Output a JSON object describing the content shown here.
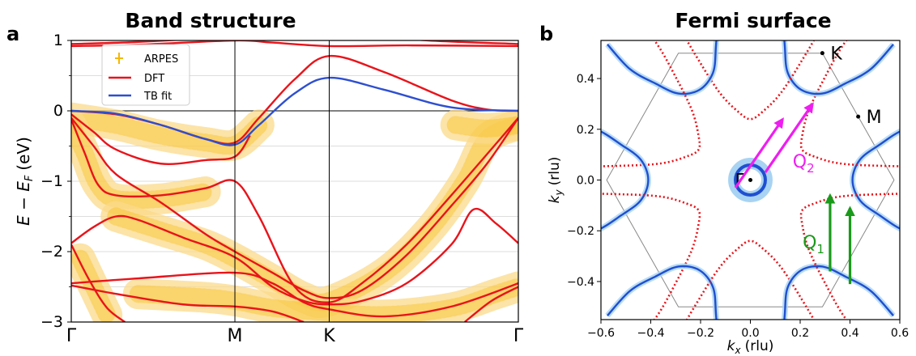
{
  "panels": {
    "a": {
      "letter": "a",
      "title": "Band structure"
    },
    "b": {
      "letter": "b",
      "title": "Fermi surface"
    }
  },
  "colors": {
    "dft": "#e8141b",
    "tb": "#2e4fcf",
    "arpes": "#f5b700",
    "arpes_glow": "#fbd98a",
    "magenta": "#ee1ef0",
    "green": "#1a9a1a",
    "fs_blue": "#1f4fd0",
    "fs_light": "#a8d3f2",
    "hexagon": "#888888"
  },
  "chart_data": [
    {
      "type": "line",
      "title": "Band structure",
      "ylabel": "E − E_F (eV)",
      "ylabel_parts": {
        "main": "E − E",
        "sub": "F",
        "unit": "(eV)"
      },
      "ylim": [
        -3,
        1
      ],
      "yticks": [
        1,
        0,
        -1,
        -2,
        -3
      ],
      "ytick_labels": [
        "1",
        "0",
        "−1",
        "−2",
        "−3"
      ],
      "xlim": [
        0,
        1
      ],
      "kpoints": [
        {
          "label": "Γ",
          "x": 0.0
        },
        {
          "label": "M",
          "x": 0.366
        },
        {
          "label": "K",
          "x": 0.577
        },
        {
          "label": "Γ",
          "x": 1.0
        }
      ],
      "legend": {
        "placement": "upper-left",
        "entries": [
          {
            "label": "ARPES",
            "kind": "marker",
            "color": "#f5b700"
          },
          {
            "label": "DFT",
            "kind": "line",
            "color": "#e8141b"
          },
          {
            "label": "TB fit",
            "kind": "line",
            "color": "#2e4fcf"
          }
        ]
      },
      "series": [
        {
          "kind": "dft",
          "points": [
            [
              0,
              0.92
            ],
            [
              0.15,
              0.94
            ],
            [
              0.366,
              1.0
            ],
            [
              0.45,
              0.97
            ],
            [
              0.577,
              0.92
            ],
            [
              0.75,
              0.93
            ],
            [
              1.0,
              0.92
            ]
          ]
        },
        {
          "kind": "dft",
          "points": [
            [
              0,
              0.95
            ],
            [
              0.15,
              0.98
            ],
            [
              0.366,
              1.05
            ],
            [
              0.577,
              1.1
            ],
            [
              0.8,
              1.0
            ],
            [
              1.0,
              0.95
            ]
          ]
        },
        {
          "kind": "dft",
          "points": [
            [
              0,
              0.0
            ],
            [
              0.1,
              -0.05
            ],
            [
              0.2,
              -0.2
            ],
            [
              0.3,
              -0.4
            ],
            [
              0.366,
              -0.45
            ],
            [
              0.42,
              -0.1
            ],
            [
              0.5,
              0.45
            ],
            [
              0.577,
              0.78
            ],
            [
              0.7,
              0.55
            ],
            [
              0.85,
              0.15
            ],
            [
              0.93,
              0.02
            ],
            [
              1.0,
              0.0
            ]
          ]
        },
        {
          "kind": "dft",
          "points": [
            [
              0,
              -0.05
            ],
            [
              0.05,
              -0.3
            ],
            [
              0.1,
              -0.55
            ],
            [
              0.2,
              -0.75
            ],
            [
              0.3,
              -0.7
            ],
            [
              0.366,
              -0.65
            ],
            [
              0.4,
              -0.35
            ]
          ]
        },
        {
          "kind": "dft",
          "points": [
            [
              0,
              -0.1
            ],
            [
              0.05,
              -0.5
            ],
            [
              0.1,
              -0.9
            ],
            [
              0.2,
              -1.3
            ],
            [
              0.3,
              -1.75
            ],
            [
              0.366,
              -2.0
            ],
            [
              0.45,
              -2.3
            ],
            [
              0.52,
              -2.55
            ],
            [
              0.577,
              -2.66
            ],
            [
              0.65,
              -2.55
            ],
            [
              0.75,
              -2.05
            ],
            [
              0.85,
              -1.35
            ],
            [
              0.93,
              -0.75
            ],
            [
              1.0,
              -0.1
            ]
          ]
        },
        {
          "kind": "dft",
          "points": [
            [
              0,
              -0.12
            ],
            [
              0.03,
              -0.6
            ],
            [
              0.06,
              -1.05
            ],
            [
              0.1,
              -1.2
            ],
            [
              0.2,
              -1.2
            ],
            [
              0.3,
              -1.1
            ],
            [
              0.366,
              -1.0
            ],
            [
              0.42,
              -1.5
            ],
            [
              0.5,
              -2.5
            ],
            [
              0.577,
              -2.72
            ],
            [
              0.65,
              -2.45
            ],
            [
              0.75,
              -1.9
            ],
            [
              0.85,
              -1.2
            ],
            [
              1.0,
              -0.1
            ]
          ]
        },
        {
          "kind": "dft",
          "points": [
            [
              0,
              -1.88
            ],
            [
              0.05,
              -1.65
            ],
            [
              0.1,
              -1.5
            ],
            [
              0.15,
              -1.55
            ],
            [
              0.25,
              -1.8
            ],
            [
              0.366,
              -2.08
            ],
            [
              0.45,
              -2.5
            ],
            [
              0.52,
              -2.7
            ],
            [
              0.577,
              -2.75
            ],
            [
              0.65,
              -2.7
            ],
            [
              0.75,
              -2.45
            ],
            [
              0.85,
              -1.9
            ],
            [
              0.9,
              -1.4
            ],
            [
              0.95,
              -1.6
            ],
            [
              1.0,
              -1.88
            ]
          ]
        },
        {
          "kind": "dft",
          "points": [
            [
              0,
              -1.9
            ],
            [
              0.04,
              -2.4
            ],
            [
              0.08,
              -2.8
            ],
            [
              0.12,
              -3.0
            ]
          ]
        },
        {
          "kind": "dft",
          "points": [
            [
              0,
              -2.45
            ],
            [
              0.15,
              -2.38
            ],
            [
              0.366,
              -2.3
            ],
            [
              0.45,
              -2.45
            ],
            [
              0.52,
              -2.72
            ],
            [
              0.577,
              -2.82
            ],
            [
              0.7,
              -2.92
            ],
            [
              0.85,
              -2.78
            ],
            [
              1.0,
              -2.45
            ]
          ]
        },
        {
          "kind": "dft",
          "points": [
            [
              0,
              -2.48
            ],
            [
              0.1,
              -2.6
            ],
            [
              0.25,
              -2.75
            ],
            [
              0.366,
              -2.78
            ],
            [
              0.45,
              -2.85
            ],
            [
              0.52,
              -3.0
            ]
          ]
        },
        {
          "kind": "dft",
          "points": [
            [
              0.88,
              -3.0
            ],
            [
              0.94,
              -2.7
            ],
            [
              1.0,
              -2.5
            ]
          ]
        },
        {
          "kind": "tb",
          "points": [
            [
              0,
              0.0
            ],
            [
              0.1,
              -0.04
            ],
            [
              0.2,
              -0.2
            ],
            [
              0.3,
              -0.4
            ],
            [
              0.366,
              -0.48
            ],
            [
              0.42,
              -0.2
            ],
            [
              0.5,
              0.25
            ],
            [
              0.577,
              0.47
            ],
            [
              0.7,
              0.3
            ],
            [
              0.85,
              0.05
            ],
            [
              1.0,
              0.0
            ]
          ]
        }
      ],
      "arpes_bands": [
        {
          "points": [
            [
              0,
              -0.1
            ],
            [
              0.1,
              -0.2
            ],
            [
              0.2,
              -0.35
            ],
            [
              0.3,
              -0.45
            ],
            [
              0.366,
              -0.48
            ],
            [
              0.42,
              -0.2
            ]
          ]
        },
        {
          "points": [
            [
              0,
              -0.2
            ],
            [
              0.03,
              -0.6
            ],
            [
              0.06,
              -1.05
            ],
            [
              0.1,
              -1.25
            ],
            [
              0.2,
              -1.25
            ],
            [
              0.3,
              -1.15
            ]
          ]
        },
        {
          "points": [
            [
              0.1,
              -1.5
            ],
            [
              0.2,
              -1.7
            ],
            [
              0.3,
              -1.9
            ],
            [
              0.366,
              -2.1
            ],
            [
              0.45,
              -2.4
            ],
            [
              0.52,
              -2.65
            ],
            [
              0.577,
              -2.7
            ],
            [
              0.7,
              -2.3
            ],
            [
              0.8,
              -1.7
            ],
            [
              0.88,
              -1.0
            ],
            [
              0.93,
              -0.4
            ],
            [
              1.0,
              -0.2
            ]
          ]
        },
        {
          "points": [
            [
              0.02,
              -2.1
            ],
            [
              0.05,
              -2.5
            ],
            [
              0.08,
              -2.9
            ]
          ]
        },
        {
          "points": [
            [
              0.15,
              -2.6
            ],
            [
              0.3,
              -2.65
            ],
            [
              0.366,
              -2.7
            ],
            [
              0.45,
              -2.8
            ],
            [
              0.55,
              -2.85
            ],
            [
              0.7,
              -2.9
            ],
            [
              0.85,
              -2.8
            ],
            [
              0.95,
              -2.6
            ],
            [
              1.0,
              -2.5
            ]
          ]
        },
        {
          "points": [
            [
              0.86,
              -0.2
            ],
            [
              0.93,
              -0.25
            ],
            [
              1.0,
              -0.2
            ]
          ]
        }
      ]
    },
    {
      "type": "scatter",
      "title": "Fermi surface",
      "xlabel": "k_x (rlu)",
      "xlabel_parts": {
        "main": "k",
        "sub": "x",
        "unit": "(rlu)"
      },
      "ylabel": "k_y (rlu)",
      "ylabel_parts": {
        "main": "k",
        "sub": "y",
        "unit": "(rlu)"
      },
      "xlim": [
        -0.6,
        0.6
      ],
      "ylim": [
        -0.55,
        0.55
      ],
      "xticks": [
        -0.6,
        -0.4,
        -0.2,
        0.0,
        0.2,
        0.4,
        0.6
      ],
      "xtick_labels": [
        "−0.6",
        "−0.4",
        "−0.2",
        "0.0",
        "0.2",
        "0.4",
        "0.6"
      ],
      "yticks": [
        0.4,
        0.2,
        0.0,
        -0.2,
        -0.4
      ],
      "ytick_labels": [
        "0.4",
        "0.2",
        "0.0",
        "−0.2",
        "−0.4"
      ],
      "points": [
        {
          "label": "Γ",
          "x": 0.0,
          "y": 0.0
        },
        {
          "label": "K",
          "x": 0.289,
          "y": 0.5
        },
        {
          "label": "M",
          "x": 0.433,
          "y": 0.25
        }
      ],
      "hexagon": [
        [
          0.577,
          0.0
        ],
        [
          0.289,
          0.5
        ],
        [
          -0.289,
          0.5
        ],
        [
          -0.577,
          0.0
        ],
        [
          -0.289,
          -0.5
        ],
        [
          0.289,
          -0.5
        ]
      ],
      "gamma_pocket_radius": 0.06,
      "vectors": [
        {
          "label": "Q",
          "sub": "2",
          "color": "#ee1ef0",
          "arrows": [
            [
              [
                -0.06,
                -0.03
              ],
              [
                0.13,
                0.24
              ]
            ],
            [
              [
                0.06,
                0.03
              ],
              [
                0.25,
                0.3
              ]
            ]
          ]
        },
        {
          "label": "Q",
          "sub": "1",
          "color": "#1a9a1a",
          "arrows": [
            [
              [
                0.32,
                -0.36
              ],
              [
                0.32,
                -0.06
              ]
            ],
            [
              [
                0.4,
                -0.41
              ],
              [
                0.4,
                -0.11
              ]
            ]
          ]
        }
      ]
    }
  ]
}
